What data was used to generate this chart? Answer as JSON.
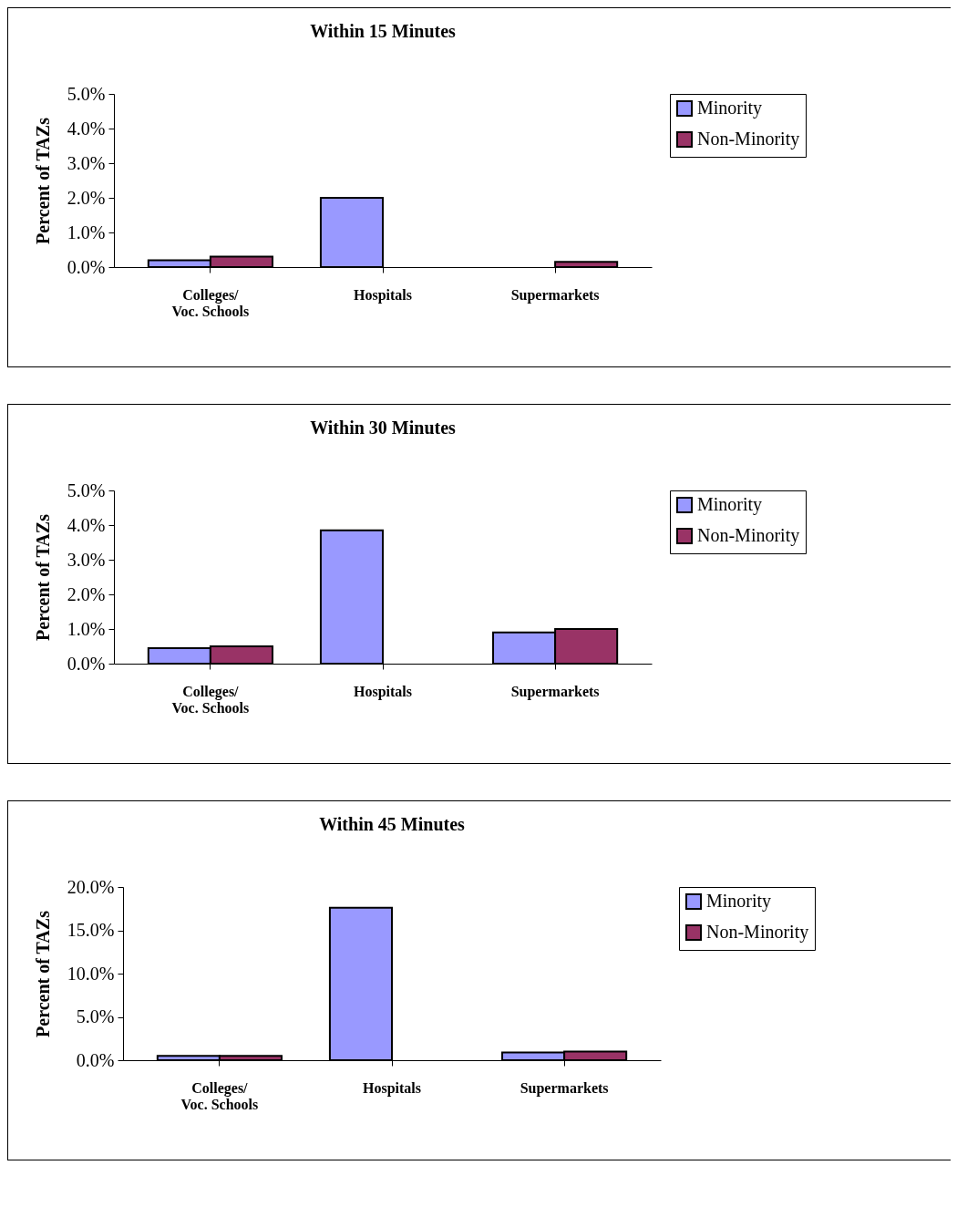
{
  "chart_data": [
    {
      "type": "bar",
      "title": "Within 15 Minutes",
      "ylabel": "Percent of TAZs",
      "categories": [
        "Colleges/\nVoc. Schools",
        "Hospitals",
        "Supermarkets"
      ],
      "series": [
        {
          "name": "Minority",
          "color": "#9999ff",
          "values": [
            0.2,
            2.0,
            null
          ]
        },
        {
          "name": "Non-Minority",
          "color": "#993366",
          "values": [
            0.3,
            null,
            0.15
          ]
        }
      ],
      "ylim": [
        0,
        5
      ],
      "yticks": [
        {
          "value": 0,
          "label": "0.0%"
        },
        {
          "value": 1,
          "label": "1.0%"
        },
        {
          "value": 2,
          "label": "2.0%"
        },
        {
          "value": 3,
          "label": "3.0%"
        },
        {
          "value": 4,
          "label": "4.0%"
        },
        {
          "value": 5,
          "label": "5.0%"
        }
      ],
      "legend": "right",
      "grid": false
    },
    {
      "type": "bar",
      "title": "Within 30 Minutes",
      "ylabel": "Percent of TAZs",
      "categories": [
        "Colleges/\nVoc. Schools",
        "Hospitals",
        "Supermarkets"
      ],
      "series": [
        {
          "name": "Minority",
          "color": "#9999ff",
          "values": [
            0.45,
            3.85,
            0.9
          ]
        },
        {
          "name": "Non-Minority",
          "color": "#993366",
          "values": [
            0.5,
            null,
            1.0
          ]
        }
      ],
      "ylim": [
        0,
        5
      ],
      "yticks": [
        {
          "value": 0,
          "label": "0.0%"
        },
        {
          "value": 1,
          "label": "1.0%"
        },
        {
          "value": 2,
          "label": "2.0%"
        },
        {
          "value": 3,
          "label": "3.0%"
        },
        {
          "value": 4,
          "label": "4.0%"
        },
        {
          "value": 5,
          "label": "5.0%"
        }
      ],
      "legend": "right",
      "grid": false
    },
    {
      "type": "bar",
      "title": "Within 45 Minutes",
      "ylabel": "Percent of TAZs",
      "categories": [
        "Colleges/\nVoc. Schools",
        "Hospitals",
        "Supermarkets"
      ],
      "series": [
        {
          "name": "Minority",
          "color": "#9999ff",
          "values": [
            0.5,
            17.6,
            0.9
          ]
        },
        {
          "name": "Non-Minority",
          "color": "#993366",
          "values": [
            0.5,
            null,
            1.0
          ]
        }
      ],
      "ylim": [
        0,
        20
      ],
      "yticks": [
        {
          "value": 0,
          "label": "0.0%"
        },
        {
          "value": 5,
          "label": "5.0%"
        },
        {
          "value": 10,
          "label": "10.0%"
        },
        {
          "value": 15,
          "label": "15.0%"
        },
        {
          "value": 20,
          "label": "20.0%"
        }
      ],
      "legend": "right",
      "grid": false
    }
  ]
}
